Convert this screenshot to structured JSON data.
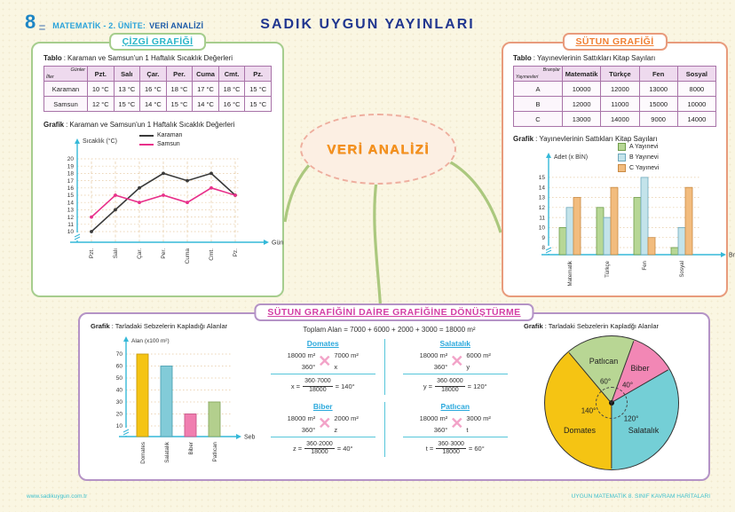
{
  "theme": {
    "axis": "#35b8d8",
    "grid": "#e6c9a0",
    "grade_color": "#1e86c5",
    "unit_color": "#2aa3da",
    "topic_color": "#1b5aa8",
    "publisher": "#20368f",
    "line_panel_border": "#a6cd8d",
    "line_title": "#2ab5c8",
    "bar_panel_border": "#e89b7c",
    "bar_title": "#f08034",
    "conv_panel_border": "#b493c6",
    "conv_title": "#d33fa5",
    "table_border": "#a873a8",
    "cloud_text": "#f6931d",
    "calc_heading": "#29a8dc",
    "calc_line": "#56c6da",
    "cross": "#f2a3c8",
    "footer": "#3fc0cc",
    "branch": "#abc87e"
  },
  "page": {
    "grade": "8",
    "header_unit": "MATEMATİK - 2. ÜNİTE:",
    "header_topic": "VERİ ANALİZİ",
    "publisher": "SADIK UYGUN YAYINLARI",
    "bubble": "VERİ ANALİZİ",
    "sep": ":",
    "footer_left": "www.sadikuygun.com.tr",
    "footer_right": "UYGUN MATEMATİK 8. SINIF KAVRAM HARİTALARI"
  },
  "line_panel": {
    "title": "ÇİZGİ GRAFİĞİ",
    "tablo_label": "Tablo",
    "grafik_label": "Grafik",
    "table_caption": "Karaman ve Samsun'un 1 Haftalık Sıcaklık Değerleri",
    "graph_caption": "Karaman ve Samsun'un 1 Haftalık Sıcaklık Değerleri",
    "table": {
      "corner_top": "Günler",
      "corner_bottom": "İller",
      "columns": [
        "Pzt.",
        "Salı",
        "Çar.",
        "Per.",
        "Cuma",
        "Cmt.",
        "Pz."
      ],
      "rows": [
        {
          "name": "Karaman",
          "values": [
            "10 °C",
            "13 °C",
            "16 °C",
            "18 °C",
            "17 °C",
            "18 °C",
            "15 °C"
          ]
        },
        {
          "name": "Samsun",
          "values": [
            "12 °C",
            "15 °C",
            "14 °C",
            "15 °C",
            "14 °C",
            "16 °C",
            "15 °C"
          ]
        }
      ]
    }
  },
  "bar_panel": {
    "title": "SÜTUN GRAFİĞİ",
    "tablo_label": "Tablo",
    "grafik_label": "Grafik",
    "table_caption": "Yayınevlerinin Sattıkları Kitap Sayıları",
    "graph_caption": "Yayınevlerinin Sattıkları Kitap Sayıları",
    "table": {
      "corner_top": "Branşlar",
      "corner_bottom": "Yayınevleri",
      "columns": [
        "Matematik",
        "Türkçe",
        "Fen",
        "Sosyal"
      ],
      "rows": [
        {
          "name": "A",
          "values": [
            "10000",
            "12000",
            "13000",
            "8000"
          ]
        },
        {
          "name": "B",
          "values": [
            "12000",
            "11000",
            "15000",
            "10000"
          ]
        },
        {
          "name": "C",
          "values": [
            "13000",
            "14000",
            "9000",
            "14000"
          ]
        }
      ]
    }
  },
  "conversion_panel": {
    "title": "SÜTUN GRAFİĞİNİ DAİRE GRAFİĞİNE DÖNÜŞTÜRME",
    "grafik_label": "Grafik",
    "bar_caption": "Tarladaki Sebzelerin Kapladığı Alanlar",
    "pie_caption": "Tarladaki Sebzelerin Kapladğı Alanlar",
    "total_line": "Toplam Alan = 7000 + 6000 + 2000 + 3000 = 18000 m²",
    "calcs": [
      {
        "name": "Domates",
        "left_top": "18000 m²",
        "left_bottom": "360°",
        "right_top": "7000 m²",
        "right_bottom": "x",
        "lhs": "x =",
        "num": "360·7000",
        "den": "18000",
        "rhs": "= 140°"
      },
      {
        "name": "Salatalık",
        "left_top": "18000 m²",
        "left_bottom": "360°",
        "right_top": "6000 m²",
        "right_bottom": "y",
        "lhs": "y =",
        "num": "360·6000",
        "den": "18000",
        "rhs": "= 120°"
      },
      {
        "name": "Biber",
        "left_top": "18000 m²",
        "left_bottom": "360°",
        "right_top": "2000 m²",
        "right_bottom": "z",
        "lhs": "z =",
        "num": "360·2000",
        "den": "18000",
        "rhs": "= 40°"
      },
      {
        "name": "Patlıcan",
        "left_top": "18000 m²",
        "left_bottom": "360°",
        "right_top": "3000 m²",
        "right_bottom": "t",
        "lhs": "t =",
        "num": "360·3000",
        "den": "18000",
        "rhs": "= 60°"
      }
    ]
  },
  "chart_data": [
    {
      "id": "temperature-line",
      "type": "line",
      "title": "Karaman ve Samsun'un 1 Haftalık Sıcaklık Değerleri",
      "ylabel": "Sıcaklık (°C)",
      "xlabel": "Günler",
      "categories": [
        "Pzt.",
        "Salı",
        "Çar.",
        "Per.",
        "Cuma",
        "Cmt.",
        "Pz."
      ],
      "yticks": [
        10,
        11,
        12,
        13,
        14,
        15,
        16,
        17,
        18,
        19,
        20
      ],
      "ylim": [
        10,
        20
      ],
      "grid": true,
      "axis_break": true,
      "legend_position": "top",
      "series": [
        {
          "name": "Karaman",
          "color": "#3a3a3a",
          "values": [
            10,
            13,
            16,
            18,
            17,
            18,
            15
          ]
        },
        {
          "name": "Samsun",
          "color": "#e8308a",
          "values": [
            12,
            15,
            14,
            15,
            14,
            16,
            15
          ]
        }
      ]
    },
    {
      "id": "publisher-books-bar",
      "type": "bar",
      "title": "Yayınevlerinin Sattıkları Kitap Sayıları",
      "ylabel": "Adet (x BİN)",
      "xlabel": "Branşlar",
      "categories": [
        "Matematik",
        "Türkçe",
        "Fen",
        "Sosyal"
      ],
      "yticks": [
        8,
        9,
        10,
        11,
        12,
        13,
        14,
        15
      ],
      "ylim": [
        8,
        15
      ],
      "grid": true,
      "axis_break": true,
      "legend_position": "top-right",
      "series": [
        {
          "name": "A Yayınevi",
          "color": "#b7d795",
          "border": "#6f9c4a",
          "values": [
            10,
            12,
            13,
            8
          ]
        },
        {
          "name": "B Yayınevi",
          "color": "#c3e3ea",
          "border": "#6fa8bc",
          "values": [
            12,
            11,
            15,
            10
          ]
        },
        {
          "name": "C Yayınevi",
          "color": "#f2bc7e",
          "border": "#c98a44",
          "values": [
            13,
            14,
            9,
            14
          ]
        }
      ]
    },
    {
      "id": "vegetable-areas-bar",
      "type": "bar",
      "title": "Tarladaki Sebzelerin Kapladığı Alanlar",
      "ylabel": "Alan (x100 m²)",
      "xlabel": "Sebzeler",
      "categories": [
        "Domates",
        "Salatalık",
        "Biber",
        "Patlıcan"
      ],
      "yticks": [
        10,
        20,
        30,
        40,
        50,
        60,
        70
      ],
      "ylim": [
        0,
        70
      ],
      "grid": true,
      "axis_break": true,
      "values": [
        70,
        60,
        20,
        30
      ],
      "colors": [
        "#f5c413",
        "#82cbd8",
        "#f07eb0",
        "#b3cf8d"
      ],
      "borders": [
        "#c99b10",
        "#4fa3b5",
        "#c95a8c",
        "#88a861"
      ]
    },
    {
      "id": "vegetable-areas-pie",
      "type": "pie",
      "title": "Tarladaki Sebzelerin Kapladğı Alanlar",
      "slices": [
        {
          "name": "Domates",
          "angle": 140,
          "color": "#f5c413"
        },
        {
          "name": "Salatalık",
          "angle": 120,
          "color": "#74cfd6"
        },
        {
          "name": "Biber",
          "angle": 40,
          "color": "#f287b5"
        },
        {
          "name": "Patlıcan",
          "angle": 60,
          "color": "#b8d694"
        }
      ],
      "draw_order_clockwise_from_top": [
        "Patlıcan",
        "Biber",
        "Salatalık",
        "Domates"
      ],
      "start_angle_deg": -40
    }
  ]
}
